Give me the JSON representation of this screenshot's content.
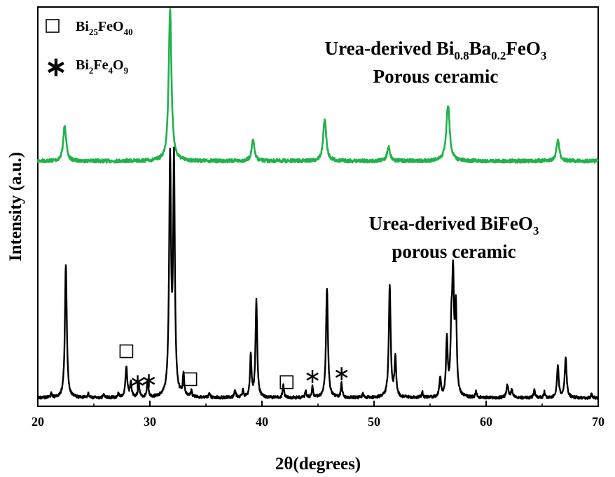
{
  "chart_data": {
    "type": "line",
    "xlabel": "2θ(degrees)",
    "ylabel": "Intensity (a.u.)",
    "xlim": [
      20,
      70
    ],
    "xticks": [
      "20",
      "30",
      "40",
      "50",
      "60",
      "70"
    ],
    "grid": false,
    "legend_position": "top-left",
    "legend": [
      {
        "marker": "□",
        "formula": "Bi",
        "sub1": "25",
        "mid": "FeO",
        "sub2": "40"
      },
      {
        "marker": "∗",
        "formula": "Bi",
        "sub1": "2",
        "mid": "Fe",
        "sub2": "4",
        "tail": "O",
        "sub3": "9"
      }
    ],
    "annotations": {
      "top": {
        "line1_prefix": "Urea-derived Bi",
        "sub_a": "0.8",
        "mid": "Ba",
        "sub_b": "0.2",
        "tail": "FeO",
        "sub_c": "3",
        "line2": "Porous ceramic"
      },
      "bottom": {
        "line1_prefix": "Urea-derived BiFeO",
        "sub": "3",
        "line2": "porous ceramic"
      }
    },
    "series": [
      {
        "color": "#22b14c",
        "baseline": 230,
        "peaks": [
          {
            "x": 22.4,
            "h": 52,
            "w": 0.15
          },
          {
            "x": 31.8,
            "h": 215,
            "w": 0.15
          },
          {
            "x": 39.2,
            "h": 30,
            "w": 0.15
          },
          {
            "x": 45.6,
            "h": 60,
            "w": 0.16
          },
          {
            "x": 51.3,
            "h": 20,
            "w": 0.16
          },
          {
            "x": 56.6,
            "h": 80,
            "w": 0.18
          },
          {
            "x": 66.4,
            "h": 30,
            "w": 0.16
          }
        ]
      },
      {
        "color": "#000000",
        "baseline": 568,
        "peaks": [
          {
            "x": 21.2,
            "h": 6,
            "w": 0.06
          },
          {
            "x": 22.5,
            "h": 190,
            "w": 0.1
          },
          {
            "x": 24.5,
            "h": 6,
            "w": 0.06
          },
          {
            "x": 25.9,
            "h": 5,
            "w": 0.06
          },
          {
            "x": 27.2,
            "h": 6,
            "w": 0.06
          },
          {
            "x": 27.9,
            "h": 44,
            "w": 0.1
          },
          {
            "x": 28.3,
            "h": 22,
            "w": 0.08
          },
          {
            "x": 29.0,
            "h": 20,
            "w": 0.08
          },
          {
            "x": 29.8,
            "h": 24,
            "w": 0.08
          },
          {
            "x": 31.8,
            "h": 335,
            "w": 0.1
          },
          {
            "x": 32.15,
            "h": 330,
            "w": 0.09
          },
          {
            "x": 33.0,
            "h": 30,
            "w": 0.08
          },
          {
            "x": 33.7,
            "h": 10,
            "w": 0.06
          },
          {
            "x": 35.3,
            "h": 8,
            "w": 0.06
          },
          {
            "x": 37.6,
            "h": 12,
            "w": 0.07
          },
          {
            "x": 38.3,
            "h": 10,
            "w": 0.07
          },
          {
            "x": 39.0,
            "h": 60,
            "w": 0.08
          },
          {
            "x": 39.5,
            "h": 138,
            "w": 0.09
          },
          {
            "x": 41.9,
            "h": 18,
            "w": 0.07
          },
          {
            "x": 43.9,
            "h": 10,
            "w": 0.06
          },
          {
            "x": 44.5,
            "h": 16,
            "w": 0.07
          },
          {
            "x": 45.8,
            "h": 157,
            "w": 0.1
          },
          {
            "x": 47.1,
            "h": 20,
            "w": 0.07
          },
          {
            "x": 49.0,
            "h": 7,
            "w": 0.06
          },
          {
            "x": 51.4,
            "h": 158,
            "w": 0.1
          },
          {
            "x": 51.9,
            "h": 55,
            "w": 0.09
          },
          {
            "x": 54.3,
            "h": 8,
            "w": 0.07
          },
          {
            "x": 55.9,
            "h": 28,
            "w": 0.08
          },
          {
            "x": 56.5,
            "h": 80,
            "w": 0.09
          },
          {
            "x": 56.9,
            "h": 75,
            "w": 0.09
          },
          {
            "x": 57.05,
            "h": 160,
            "w": 0.1
          },
          {
            "x": 57.3,
            "h": 120,
            "w": 0.09
          },
          {
            "x": 59.1,
            "h": 8,
            "w": 0.07
          },
          {
            "x": 61.9,
            "h": 18,
            "w": 0.1
          },
          {
            "x": 62.3,
            "h": 12,
            "w": 0.08
          },
          {
            "x": 64.3,
            "h": 12,
            "w": 0.07
          },
          {
            "x": 65.2,
            "h": 8,
            "w": 0.07
          },
          {
            "x": 66.4,
            "h": 45,
            "w": 0.09
          },
          {
            "x": 67.1,
            "h": 56,
            "w": 0.1
          },
          {
            "x": 69.4,
            "h": 6,
            "w": 0.06
          }
        ]
      }
    ],
    "markers": [
      {
        "symbol": "□",
        "x": 27.9
      },
      {
        "symbol": "∗",
        "x": 28.9
      },
      {
        "symbol": "∗",
        "x": 29.9
      },
      {
        "symbol": "□",
        "x": 33.6
      },
      {
        "symbol": "□",
        "x": 42.2
      },
      {
        "symbol": "∗",
        "x": 44.5
      },
      {
        "symbol": "∗",
        "x": 47.1
      }
    ]
  }
}
